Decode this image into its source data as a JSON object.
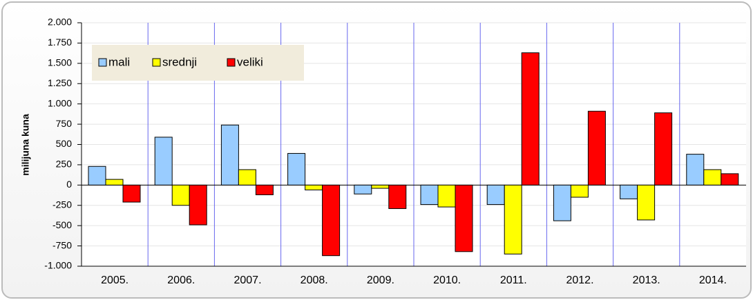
{
  "chart_data": {
    "type": "bar",
    "ylabel": "milijuna kuna",
    "categories": [
      "2005.",
      "2006.",
      "2007.",
      "2008.",
      "2009.",
      "2010.",
      "2011.",
      "2012.",
      "2013.",
      "2014."
    ],
    "series": [
      {
        "name": "mali",
        "color": "#99ccff",
        "values": [
          230,
          590,
          740,
          390,
          -110,
          -240,
          -240,
          -440,
          -170,
          380
        ]
      },
      {
        "name": "srednji",
        "color": "#ffff00",
        "values": [
          70,
          -250,
          190,
          -60,
          -40,
          -270,
          -850,
          -150,
          -430,
          190
        ]
      },
      {
        "name": "veliki",
        "color": "#ff0000",
        "values": [
          -210,
          -490,
          -120,
          -870,
          -290,
          -820,
          1630,
          910,
          890,
          140
        ]
      }
    ],
    "ylim": [
      -1000,
      2000
    ],
    "yticks": [
      {
        "value": -1000,
        "label": "-1.000"
      },
      -750,
      -500,
      -250,
      0,
      250,
      500,
      750,
      {
        "value": 1000,
        "label": "1.000"
      },
      {
        "value": 1250,
        "label": "1.250"
      },
      {
        "value": 1500,
        "label": "1.500"
      },
      {
        "value": 1750,
        "label": "1.750"
      },
      {
        "value": 2000,
        "label": "2.000"
      }
    ],
    "grid": true,
    "legend": "upper left"
  }
}
